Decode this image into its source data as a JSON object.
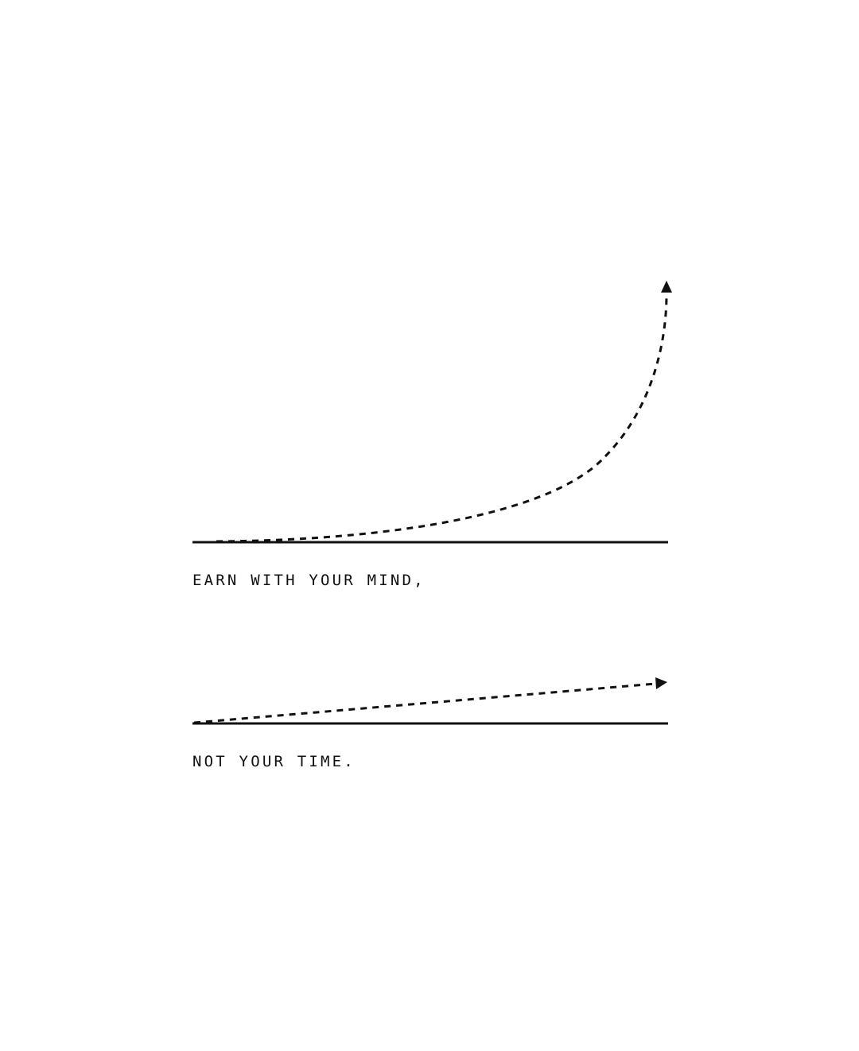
{
  "captions": {
    "top": "EARN WITH YOUR MIND,",
    "bottom": "NOT YOUR TIME."
  },
  "colors": {
    "background": "#ffffff",
    "ink": "#111111"
  },
  "panels": [
    {
      "name": "exponential-growth",
      "curve": "exponential",
      "arrow_direction": "up"
    },
    {
      "name": "linear-growth",
      "curve": "linear",
      "arrow_direction": "right"
    }
  ]
}
